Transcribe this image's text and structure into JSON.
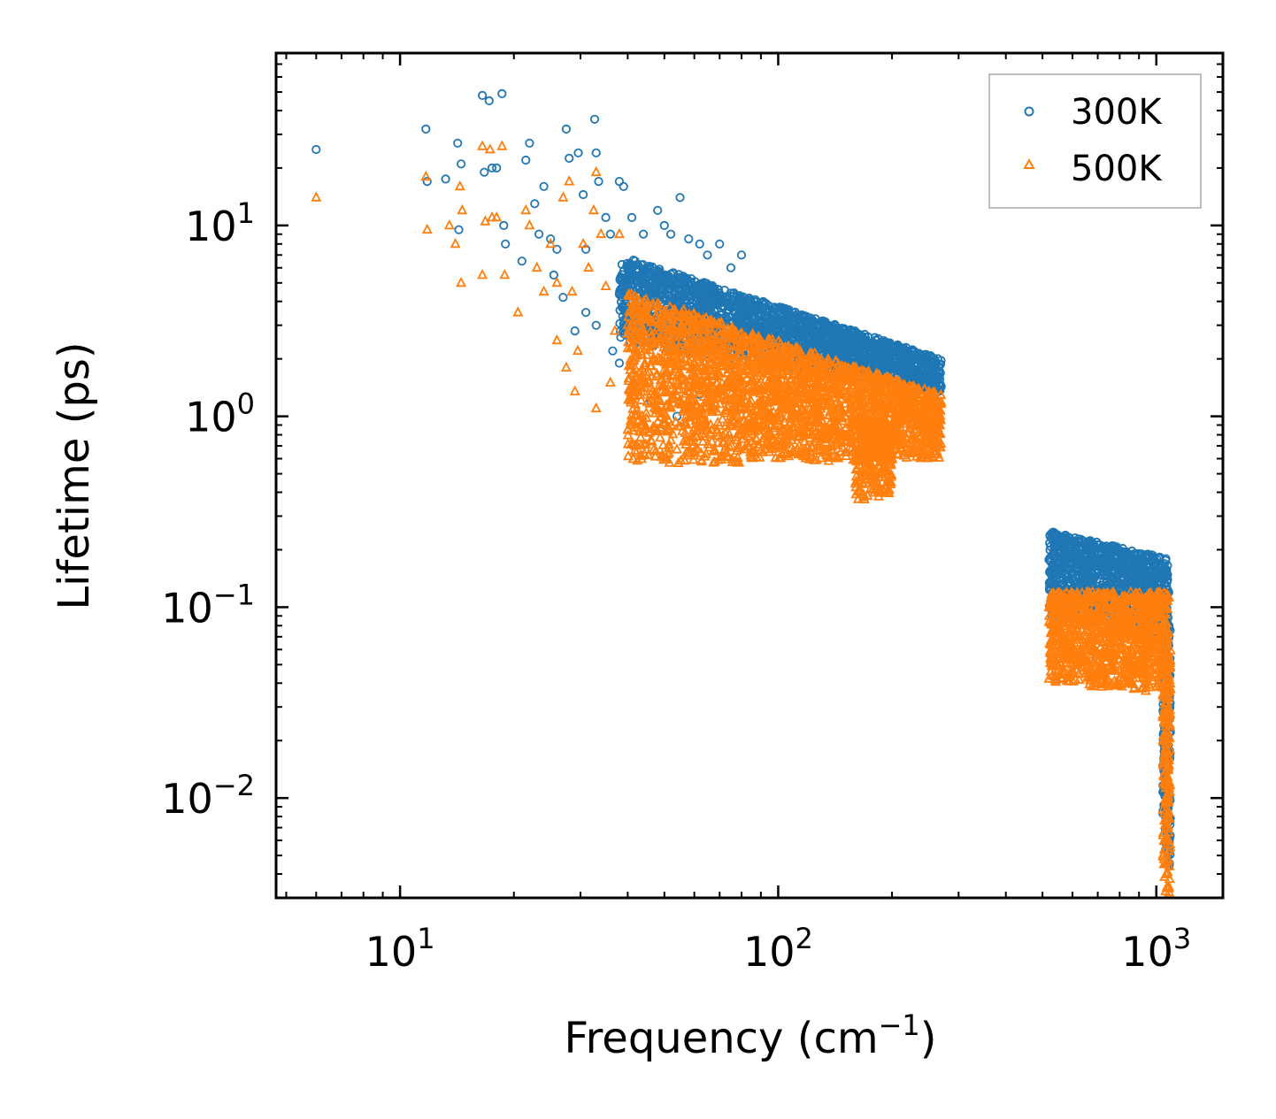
{
  "chart_data": {
    "type": "scatter",
    "title": "",
    "xlabel": "Frequency (cm",
    "xlabel_exp": "−1",
    "xlabel_suffix": ")",
    "ylabel": "Lifetime (ps)",
    "xscale": "log",
    "yscale": "log",
    "xlim": [
      4.7,
      1500
    ],
    "ylim": [
      0.003,
      80
    ],
    "x_ticks": [
      {
        "base": "10",
        "exp": "1",
        "value": 10
      },
      {
        "base": "10",
        "exp": "2",
        "value": 100
      },
      {
        "base": "10",
        "exp": "3",
        "value": 1000
      }
    ],
    "y_ticks": [
      {
        "base": "10",
        "exp": "−2",
        "value": 0.01
      },
      {
        "base": "10",
        "exp": "−1",
        "value": 0.1
      },
      {
        "base": "10",
        "exp": "0",
        "value": 1
      },
      {
        "base": "10",
        "exp": "1",
        "value": 10
      }
    ],
    "legend_position": "top-right",
    "series": [
      {
        "name": "300K",
        "marker": "circle",
        "color": "#1f77b4",
        "points": [
          [
            6.0,
            25
          ],
          [
            11.7,
            32
          ],
          [
            11.8,
            17
          ],
          [
            13.2,
            17.5
          ],
          [
            14.2,
            27
          ],
          [
            14.5,
            21
          ],
          [
            14.3,
            9.5
          ],
          [
            16.5,
            48
          ],
          [
            17.2,
            45
          ],
          [
            18.6,
            49
          ],
          [
            17.5,
            20
          ],
          [
            18.0,
            20
          ],
          [
            16.7,
            19
          ],
          [
            18.8,
            10
          ],
          [
            19.0,
            8
          ],
          [
            21.0,
            6.5
          ],
          [
            21.5,
            22
          ],
          [
            22.0,
            27
          ],
          [
            22.7,
            13
          ],
          [
            24.0,
            16
          ],
          [
            23.3,
            9
          ],
          [
            25.0,
            8.5
          ],
          [
            26.0,
            7.5
          ],
          [
            27.5,
            32
          ],
          [
            28.0,
            22.5
          ],
          [
            29.6,
            24
          ],
          [
            31.0,
            7.5
          ],
          [
            30.5,
            14.5
          ],
          [
            32.7,
            36
          ],
          [
            33.0,
            24
          ],
          [
            33.5,
            17
          ],
          [
            35.0,
            11
          ],
          [
            36.0,
            9
          ],
          [
            38.0,
            17
          ],
          [
            39.0,
            16
          ],
          [
            41.0,
            11
          ],
          [
            44.0,
            9
          ],
          [
            48.0,
            12
          ],
          [
            50.0,
            10
          ],
          [
            52.0,
            9
          ],
          [
            55.0,
            14
          ],
          [
            58.0,
            8.5
          ],
          [
            62.0,
            8
          ],
          [
            65.0,
            7
          ],
          [
            70.0,
            8
          ],
          [
            75.0,
            6
          ],
          [
            80.0,
            7
          ],
          [
            25.5,
            5.5
          ],
          [
            27.0,
            4.2
          ],
          [
            29.0,
            2.8
          ],
          [
            31.0,
            3.5
          ],
          [
            33.0,
            3.0
          ],
          [
            36.5,
            2.2
          ],
          [
            38.0,
            1.9
          ],
          [
            42.0,
            1.5
          ],
          [
            46.0,
            1.2
          ],
          [
            50.0,
            0.9
          ],
          [
            54.0,
            1.0
          ],
          [
            58.0,
            1.1
          ],
          [
            62.0,
            1.3
          ]
        ],
        "bands": [
          {
            "from": 38,
            "to": 270,
            "top_a": 7.0,
            "top_b": 2.0,
            "bottom_a": 2.5,
            "bottom_b": 1.3,
            "count": 2200
          },
          {
            "from": 520,
            "to": 1080,
            "top_a": 0.25,
            "top_b": 0.18,
            "bottom_a": 0.09,
            "bottom_b": 0.07,
            "count": 1100
          },
          {
            "from": 1040,
            "to": 1090,
            "top_a": 0.12,
            "top_b": 0.08,
            "bottom_a": 0.0045,
            "bottom_b": 0.004,
            "count": 200
          }
        ]
      },
      {
        "name": "500K",
        "marker": "triangle",
        "color": "#ff7f0e",
        "points": [
          [
            6.0,
            14
          ],
          [
            11.7,
            18
          ],
          [
            11.8,
            9.5
          ],
          [
            13.5,
            10
          ],
          [
            14.0,
            8
          ],
          [
            14.4,
            16
          ],
          [
            14.6,
            12
          ],
          [
            14.5,
            5
          ],
          [
            16.5,
            26
          ],
          [
            17.3,
            25
          ],
          [
            18.6,
            26
          ],
          [
            17.5,
            11
          ],
          [
            18.0,
            11
          ],
          [
            16.8,
            10.5
          ],
          [
            18.9,
            5.5
          ],
          [
            16.5,
            5.5
          ],
          [
            20.5,
            3.5
          ],
          [
            21.5,
            12
          ],
          [
            22.0,
            10
          ],
          [
            23.0,
            6
          ],
          [
            24.0,
            4.5
          ],
          [
            25.0,
            8
          ],
          [
            26.0,
            5
          ],
          [
            27.0,
            14
          ],
          [
            28.0,
            17
          ],
          [
            28.5,
            4.5
          ],
          [
            29.5,
            2.2
          ],
          [
            30.5,
            8
          ],
          [
            31.5,
            6
          ],
          [
            32.5,
            12
          ],
          [
            33.0,
            19
          ],
          [
            34.0,
            9
          ],
          [
            35.0,
            4.8
          ],
          [
            36.0,
            1.5
          ],
          [
            37.0,
            2.8
          ],
          [
            38.0,
            9
          ],
          [
            40.0,
            0.85
          ],
          [
            42.0,
            1.4
          ],
          [
            44.0,
            0.85
          ],
          [
            46.0,
            0.75
          ],
          [
            29.0,
            1.35
          ],
          [
            33.0,
            1.1
          ],
          [
            27.5,
            1.8
          ],
          [
            26.0,
            2.5
          ]
        ],
        "bands": [
          {
            "from": 40,
            "to": 270,
            "top_a": 4.5,
            "top_b": 1.3,
            "bottom_a": 0.55,
            "bottom_b": 0.6,
            "count": 2600
          },
          {
            "from": 160,
            "to": 200,
            "top_a": 1.0,
            "top_b": 0.9,
            "bottom_a": 0.36,
            "bottom_b": 0.38,
            "count": 250
          },
          {
            "from": 520,
            "to": 1080,
            "top_a": 0.12,
            "top_b": 0.12,
            "bottom_a": 0.04,
            "bottom_b": 0.035,
            "count": 1100
          },
          {
            "from": 1040,
            "to": 1090,
            "top_a": 0.08,
            "top_b": 0.06,
            "bottom_a": 0.0033,
            "bottom_b": 0.003,
            "count": 200
          }
        ]
      }
    ]
  }
}
